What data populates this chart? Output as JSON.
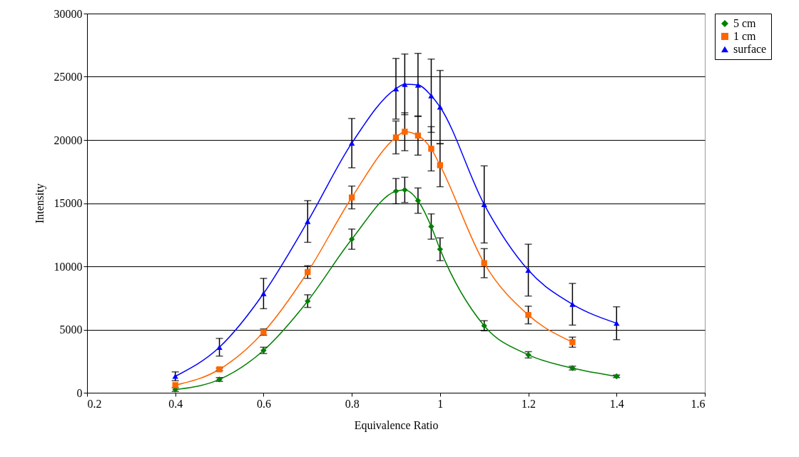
{
  "chart_data": {
    "type": "line",
    "xlabel": "Equivalence Ratio",
    "ylabel": "Intensity",
    "x": [
      0.4,
      0.5,
      0.6,
      0.7,
      0.8,
      0.9,
      0.92,
      0.95,
      0.98,
      1.0,
      1.1,
      1.2,
      1.3,
      1.4
    ],
    "xlim": [
      0.2,
      1.6
    ],
    "xticks": [
      0.2,
      0.4,
      0.6,
      0.8,
      1,
      1.2,
      1.4,
      1.6
    ],
    "ylim": [
      0,
      30000
    ],
    "yticks": [
      0,
      5000,
      10000,
      15000,
      20000,
      25000,
      30000
    ],
    "grid": "y",
    "legend": "right",
    "line_style": "solid",
    "series": [
      {
        "name": "5 cm",
        "color": "#008000",
        "marker": "diamond",
        "values": [
          250,
          1050,
          3350,
          7250,
          12150,
          15950,
          16050,
          15200,
          13150,
          11350,
          5300,
          3000,
          1950,
          1300
        ],
        "errors": [
          150,
          150,
          250,
          500,
          800,
          1000,
          1000,
          1000,
          1000,
          900,
          400,
          250,
          150,
          100
        ]
      },
      {
        "name": "1 cm",
        "color": "#ff6600",
        "marker": "square",
        "values": [
          600,
          1850,
          4800,
          9550,
          15450,
          20200,
          20650,
          20350,
          19300,
          18000,
          10250,
          6150,
          4000,
          null
        ],
        "errors": [
          null,
          100,
          250,
          500,
          900,
          1300,
          1500,
          1550,
          1750,
          1700,
          1150,
          700,
          400,
          null
        ]
      },
      {
        "name": "surface",
        "color": "#0000ff",
        "marker": "triangle",
        "values": [
          1300,
          3600,
          7850,
          13550,
          19750,
          24050,
          24400,
          24350,
          23500,
          22600,
          14900,
          9700,
          7000,
          5500
        ],
        "errors": [
          350,
          700,
          1200,
          1650,
          1950,
          2400,
          2400,
          2500,
          2900,
          2900,
          3050,
          2050,
          1650,
          1300
        ]
      }
    ]
  }
}
